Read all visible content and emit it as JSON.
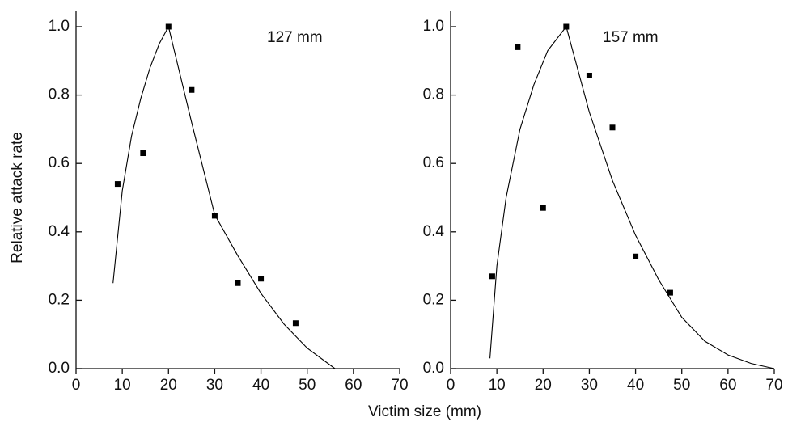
{
  "chart_data": [
    {
      "type": "scatter",
      "ylabel": "Relative attack rate",
      "xlabel": "Victim size (mm)",
      "annotation": "127 mm",
      "xlim": [
        0,
        70
      ],
      "xticks": [
        0,
        10,
        20,
        30,
        40,
        50,
        60,
        70
      ],
      "ylim": [
        0,
        1
      ],
      "yticks": [
        {
          "value": 0,
          "label": "0.0"
        },
        0.2,
        0.4,
        0.6,
        0.8,
        {
          "value": 1,
          "label": "1.0"
        }
      ],
      "series": [
        {
          "style": "markers",
          "color": "#000000",
          "x": [
            9,
            14.5,
            20,
            25,
            30,
            35,
            40,
            47.5
          ],
          "values": [
            0.54,
            0.63,
            1.0,
            0.815,
            0.447,
            0.25,
            0.263,
            0.133
          ]
        },
        {
          "style": "line",
          "color": "#000000",
          "x": [
            8,
            10,
            12,
            14,
            16,
            18,
            20,
            25,
            30,
            35,
            40,
            45,
            50,
            56
          ],
          "values": [
            0.25,
            0.52,
            0.68,
            0.79,
            0.88,
            0.95,
            1.0,
            0.72,
            0.45,
            0.33,
            0.22,
            0.13,
            0.06,
            0
          ]
        }
      ]
    },
    {
      "type": "scatter",
      "annotation": "157 mm",
      "xlim": [
        0,
        70
      ],
      "xticks": [
        0,
        10,
        20,
        30,
        40,
        50,
        60,
        70
      ],
      "ylim": [
        0,
        1
      ],
      "yticks": [
        {
          "value": 0,
          "label": "0.0"
        },
        0.2,
        0.4,
        0.6,
        0.8,
        {
          "value": 1,
          "label": "1.0"
        }
      ],
      "series": [
        {
          "style": "markers",
          "color": "#000000",
          "x": [
            9,
            14.5,
            20,
            25,
            30,
            35,
            40,
            47.5
          ],
          "values": [
            0.27,
            0.94,
            0.47,
            1.0,
            0.857,
            0.705,
            0.328,
            0.222
          ]
        },
        {
          "style": "line",
          "color": "#000000",
          "x": [
            8.5,
            10,
            12,
            15,
            18,
            21,
            25,
            30,
            35,
            40,
            45,
            50,
            55,
            60,
            65,
            70
          ],
          "values": [
            0.03,
            0.3,
            0.5,
            0.7,
            0.83,
            0.93,
            1.0,
            0.75,
            0.55,
            0.39,
            0.26,
            0.15,
            0.08,
            0.04,
            0.015,
            0
          ]
        }
      ]
    }
  ]
}
